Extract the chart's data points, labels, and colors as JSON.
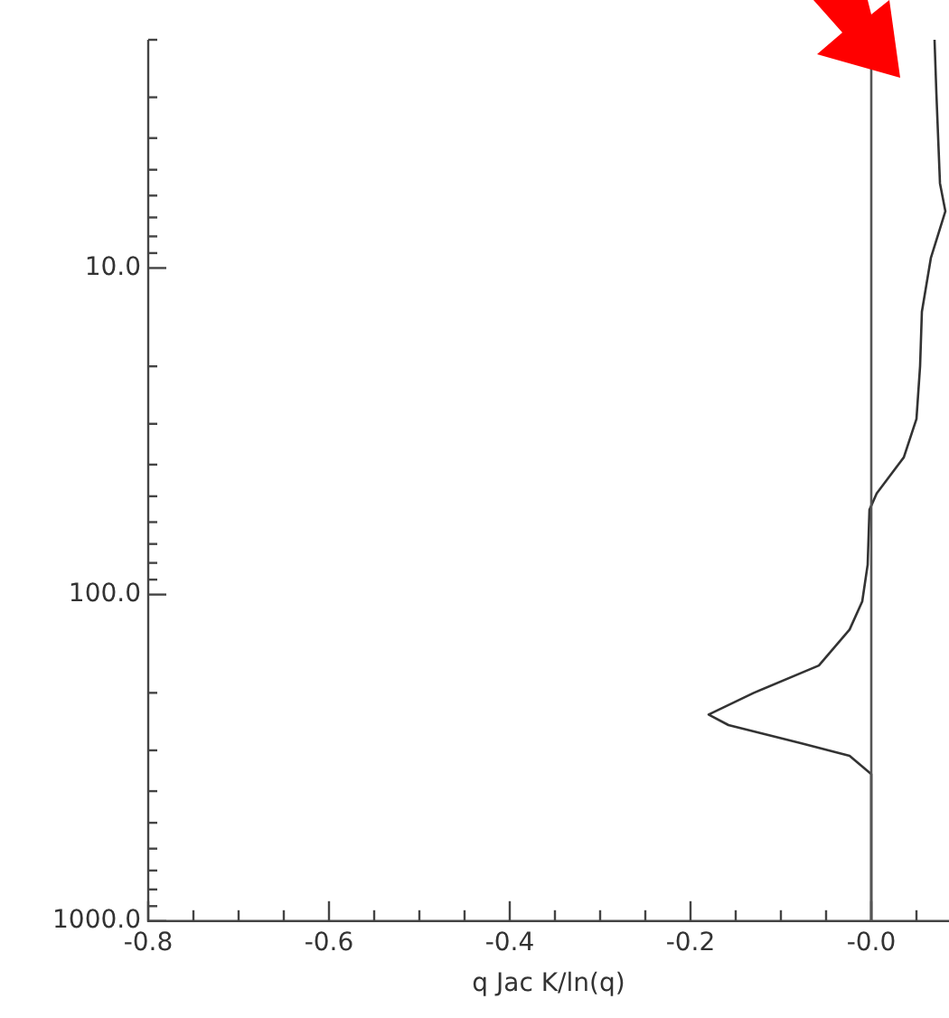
{
  "chart_data": {
    "type": "line",
    "xlabel": "q Jac K/ln(q)",
    "xlim": [
      -0.8,
      0.086
    ],
    "xticks": [
      -0.8,
      {
        "value": -0.75,
        "label": null
      },
      {
        "value": -0.7,
        "label": null
      },
      {
        "value": -0.65,
        "label": null
      },
      -0.6,
      {
        "value": -0.55,
        "label": null
      },
      {
        "value": -0.5,
        "label": null
      },
      {
        "value": -0.45,
        "label": null
      },
      -0.4,
      {
        "value": -0.35,
        "label": null
      },
      {
        "value": -0.3,
        "label": null
      },
      {
        "value": -0.25,
        "label": null
      },
      -0.2,
      {
        "value": -0.15,
        "label": null
      },
      {
        "value": -0.1,
        "label": null
      },
      {
        "value": -0.05,
        "label": null
      },
      {
        "value": 0,
        "label": "-0.0"
      },
      {
        "value": 0.05,
        "label": null
      }
    ],
    "ylim": [
      1000,
      2
    ],
    "log": "y",
    "yticks": [
      {
        "value": 2,
        "label": null
      },
      {
        "value": 3,
        "label": null
      },
      {
        "value": 4,
        "label": null
      },
      {
        "value": 5,
        "label": null
      },
      {
        "value": 6,
        "label": null
      },
      {
        "value": 7,
        "label": null
      },
      {
        "value": 8,
        "label": null
      },
      {
        "value": 9,
        "label": null
      },
      {
        "value": 10,
        "label": "10.0"
      },
      {
        "value": 20,
        "label": null
      },
      {
        "value": 30,
        "label": null
      },
      {
        "value": 40,
        "label": null
      },
      {
        "value": 50,
        "label": null
      },
      {
        "value": 60,
        "label": null
      },
      {
        "value": 70,
        "label": null
      },
      {
        "value": 80,
        "label": null
      },
      {
        "value": 90,
        "label": null
      },
      {
        "value": 100,
        "label": "100.0"
      },
      {
        "value": 200,
        "label": null
      },
      {
        "value": 300,
        "label": null
      },
      {
        "value": 400,
        "label": null
      },
      {
        "value": 500,
        "label": null
      },
      {
        "value": 600,
        "label": null
      },
      {
        "value": 700,
        "label": null
      },
      {
        "value": 800,
        "label": null
      },
      {
        "value": 900,
        "label": null
      },
      {
        "value": 1000,
        "label": "1000.0"
      }
    ],
    "ref_lines": [
      {
        "axis": "x",
        "value": 0,
        "color": "#555555"
      }
    ],
    "grid": false,
    "legend": false,
    "series": [
      {
        "color": "#333333",
        "x": [
          0.07,
          0.072,
          0.076,
          0.082,
          0.066,
          0.056,
          0.054,
          0.05,
          0.036,
          0.006,
          -0.002,
          -0.004,
          -0.01,
          -0.024,
          -0.058,
          -0.13,
          -0.18,
          -0.158,
          -0.078,
          -0.024,
          0,
          0
        ],
        "values": [
          2.0,
          2.9,
          5.5,
          6.7,
          9.3,
          13.6,
          20,
          29,
          38,
          49,
          55,
          81,
          105,
          128,
          165,
          200,
          233,
          251,
          285,
          312,
          355,
          1000
        ]
      }
    ]
  }
}
